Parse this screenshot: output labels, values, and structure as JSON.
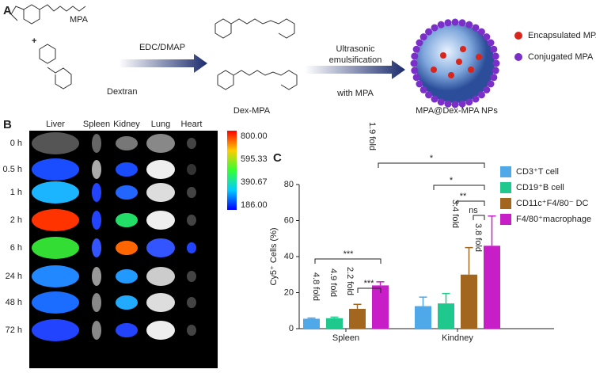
{
  "panel_a": {
    "label": "A",
    "mpa": "MPA",
    "plus": "+",
    "dextran": "Dextran",
    "reagent": "EDC/DMAP",
    "conjugate": "Dex-MPA",
    "process": [
      "Ultrasonic",
      "emulsification"
    ],
    "process_with": "with MPA",
    "product": "MPA@Dex-MPA NPs",
    "legend": [
      "Encapsulated MPA",
      "Conjugated MPA"
    ]
  },
  "panel_b": {
    "label": "B",
    "organs": [
      "Liver",
      "Spleen",
      "Kidney",
      "Lung",
      "Heart"
    ],
    "times": [
      "0 h",
      "0.5 h",
      "1 h",
      "2 h",
      "6 h",
      "24 h",
      "48 h",
      "72 h"
    ],
    "colorbar_labels": [
      "800.00",
      "595.33",
      "390.67",
      "186.00"
    ]
  },
  "chart_data": {
    "type": "bar",
    "label": "C",
    "y_label": "Cy5⁺ Cells (%)",
    "categories": [
      "Spleen",
      "Kindney"
    ],
    "series": [
      {
        "name": "CD3⁺T cell",
        "color": "#4fa8e8",
        "values": [
          5.5,
          12.5
        ],
        "errors": [
          0.4,
          5
        ]
      },
      {
        "name": "CD19⁺B cell",
        "color": "#1fc98d",
        "values": [
          5.8,
          14
        ],
        "errors": [
          0.6,
          5.5
        ]
      },
      {
        "name": "CD11c⁺F4/80⁻ DC",
        "color": "#a3661e",
        "values": [
          11,
          30
        ],
        "errors": [
          2.5,
          15
        ]
      },
      {
        "name": "F4/80⁺macrophage",
        "color": "#c81ec8",
        "values": [
          24,
          46
        ],
        "errors": [
          2,
          16.5
        ]
      }
    ],
    "ylim": [
      0,
      80
    ],
    "yticks": [
      0,
      20,
      40,
      60,
      80
    ],
    "fold_annotations": [
      "4.8 fold",
      "4.9 fold",
      "2.2 fold",
      "1.9 fold",
      "3.4 fold",
      "3.8 fold"
    ],
    "significance": [
      "***",
      "***",
      "*",
      "*",
      "**",
      "ns"
    ]
  }
}
